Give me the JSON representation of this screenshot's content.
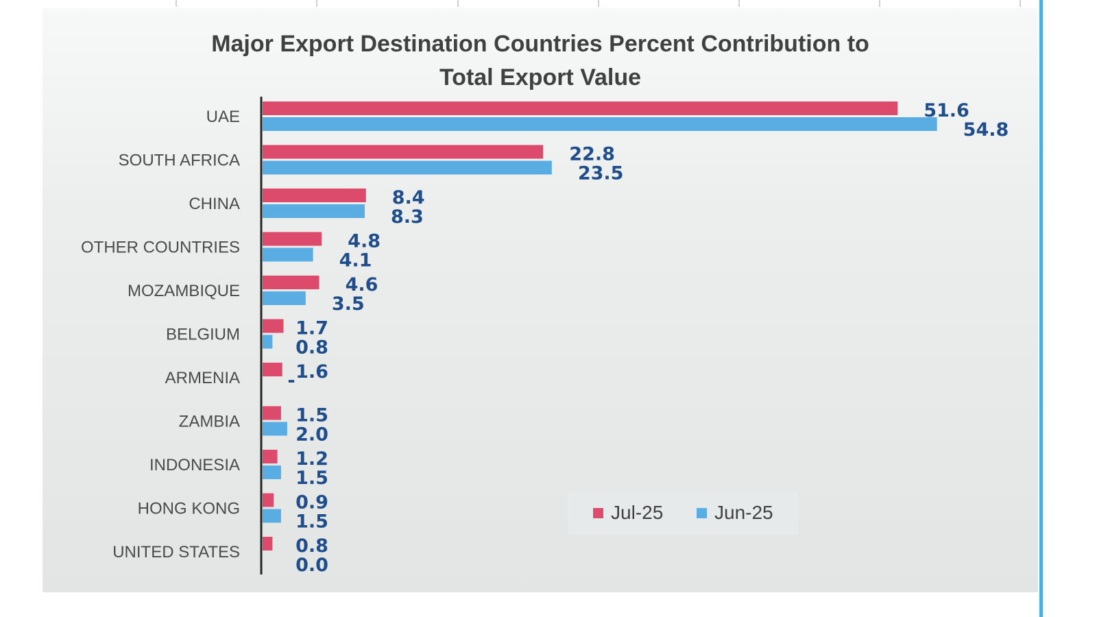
{
  "chart_data": {
    "type": "bar",
    "orientation": "horizontal",
    "title": "Major Export Destination Countries Percent Contribution to Total Export Value",
    "title_lines": [
      "Major Export Destination Countries Percent Contribution to",
      "Total Export Value"
    ],
    "categories": [
      "UAE",
      "SOUTH AFRICA",
      "CHINA",
      "OTHER COUNTRIES",
      "MOZAMBIQUE",
      "BELGIUM",
      "ARMENIA",
      "ZAMBIA",
      "INDONESIA",
      "HONG KONG",
      "UNITED STATES"
    ],
    "series": [
      {
        "name": "Jul-25",
        "color": "#dc4b6c",
        "values": [
          51.6,
          22.8,
          8.4,
          4.8,
          4.6,
          1.7,
          1.6,
          1.5,
          1.2,
          0.9,
          0.8
        ],
        "labels": [
          "51.6",
          "22.8",
          "8.4",
          "4.8",
          "4.6",
          "1.7",
          "1.6",
          "1.5",
          "1.2",
          "0.9",
          "0.8"
        ]
      },
      {
        "name": "Jun-25",
        "color": "#5aade2",
        "values": [
          54.8,
          23.5,
          8.3,
          4.1,
          3.5,
          0.8,
          null,
          2.0,
          1.5,
          1.5,
          0.0
        ],
        "labels": [
          "54.8",
          "23.5",
          "8.3",
          "4.1",
          "3.5",
          "0.8",
          "-",
          "2.0",
          "1.5",
          "1.5",
          "0.0"
        ]
      }
    ],
    "xlim": [
      0,
      55
    ],
    "grid": false,
    "legend": "bottom-right",
    "label_color": "#1f4e8a",
    "axis_color": "#262626"
  }
}
